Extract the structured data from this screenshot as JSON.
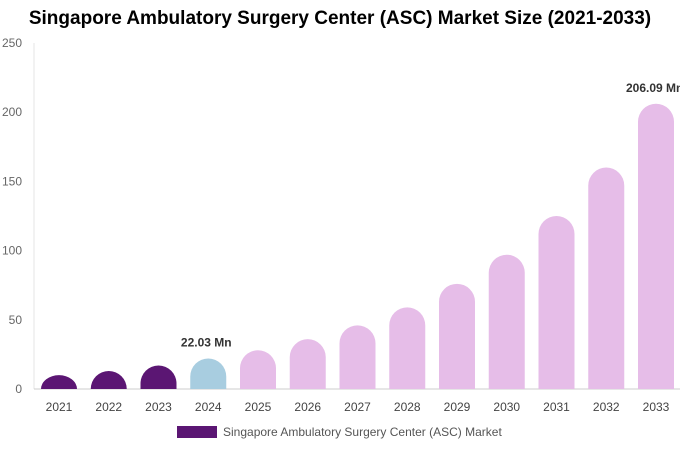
{
  "chart_data": {
    "type": "bar",
    "title": "Singapore Ambulatory Surgery Center (ASC) Market Size (2021-2033)",
    "categories": [
      "2021",
      "2022",
      "2023",
      "2024",
      "2025",
      "2026",
      "2027",
      "2028",
      "2029",
      "2030",
      "2031",
      "2032",
      "2033"
    ],
    "series": [
      {
        "name": "Singapore Ambulatory Surgery Center (ASC) Market",
        "values": [
          10,
          13,
          17,
          22.03,
          28,
          36,
          46,
          59,
          76,
          97,
          125,
          160,
          206.09
        ]
      }
    ],
    "bar_types": [
      "historical",
      "historical",
      "historical",
      "base",
      "forecast",
      "forecast",
      "forecast",
      "forecast",
      "forecast",
      "forecast",
      "forecast",
      "forecast",
      "forecast"
    ],
    "colors": {
      "historical": "#5b1673",
      "base": "#a8cde0",
      "forecast": "#e6bde8"
    },
    "data_labels": [
      {
        "category": "2024",
        "text": "22.03 Mn"
      },
      {
        "category": "2033",
        "text": "206.09 Mn"
      }
    ],
    "ylim": [
      0,
      250
    ],
    "yticks": [
      0,
      50,
      100,
      150,
      200,
      250
    ],
    "grid": false,
    "legend": {
      "position": "bottom",
      "label": "Singapore Ambulatory Surgery Center (ASC) Market",
      "color": "#5b1673"
    }
  }
}
